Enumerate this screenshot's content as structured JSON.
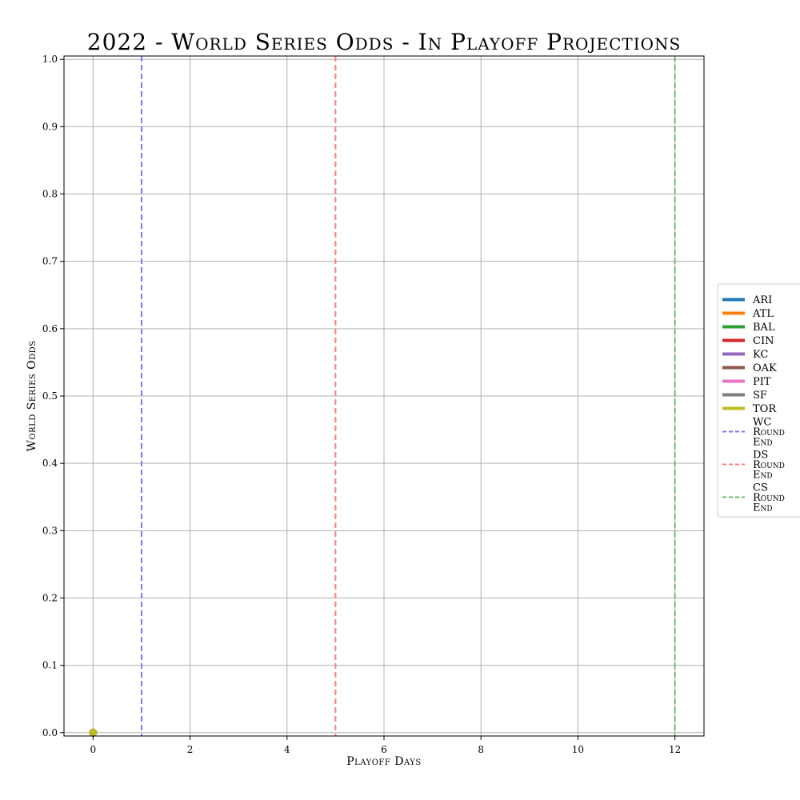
{
  "chart_data": {
    "type": "line",
    "title": "2022 - World Series Odds - In Playoff Projections",
    "xlabel": "Playoff Days",
    "ylabel": "World Series Odds",
    "xlim": [
      -0.6,
      12.6
    ],
    "ylim": [
      -0.005,
      1.005
    ],
    "xticks": [
      0,
      2,
      4,
      6,
      8,
      10,
      12
    ],
    "yticks": [
      0.0,
      0.1,
      0.2,
      0.3,
      0.4,
      0.5,
      0.6,
      0.7,
      0.8,
      0.9,
      1.0
    ],
    "xtick_labels": [
      "0",
      "2",
      "4",
      "6",
      "8",
      "10",
      "12"
    ],
    "ytick_labels": [
      "0.0",
      "0.1",
      "0.2",
      "0.3",
      "0.4",
      "0.5",
      "0.6",
      "0.7",
      "0.8",
      "0.9",
      "1.0"
    ],
    "grid": true,
    "legend_position": "center-right outside",
    "series": [
      {
        "name": "ARI",
        "color": "#1f77b4",
        "x": [
          0
        ],
        "y": [
          0.0
        ]
      },
      {
        "name": "ATL",
        "color": "#ff7f0e",
        "x": [
          0
        ],
        "y": [
          0.0
        ]
      },
      {
        "name": "BAL",
        "color": "#2ca02c",
        "x": [
          0
        ],
        "y": [
          0.0
        ]
      },
      {
        "name": "CIN",
        "color": "#d62728",
        "x": [
          0
        ],
        "y": [
          0.0
        ]
      },
      {
        "name": "KC",
        "color": "#9467bd",
        "x": [
          0
        ],
        "y": [
          0.0
        ]
      },
      {
        "name": "OAK",
        "color": "#8c564b",
        "x": [
          0
        ],
        "y": [
          0.0
        ]
      },
      {
        "name": "PIT",
        "color": "#e377c2",
        "x": [
          0
        ],
        "y": [
          0.0
        ]
      },
      {
        "name": "SF",
        "color": "#7f7f7f",
        "x": [
          0
        ],
        "y": [
          0.0
        ]
      },
      {
        "name": "TOR",
        "color": "#bcbd22",
        "x": [
          0
        ],
        "y": [
          0.0
        ]
      }
    ],
    "vlines": [
      {
        "name": "WC Round End",
        "lines": [
          "WC",
          "Round",
          "End"
        ],
        "x": 1,
        "color": "#7b7bf0"
      },
      {
        "name": "DS Round End",
        "lines": [
          "DS",
          "Round",
          "End"
        ],
        "x": 5,
        "color": "#ff7f7f"
      },
      {
        "name": "CS Round End",
        "lines": [
          "CS",
          "Round",
          "End"
        ],
        "x": 12,
        "color": "#6fb86f"
      }
    ]
  }
}
